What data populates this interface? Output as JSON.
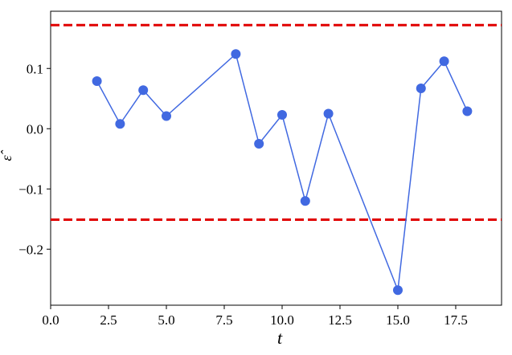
{
  "chart_data": {
    "type": "line",
    "x_label": "t",
    "y_label": "ε̂",
    "x": [
      2,
      3,
      4,
      5,
      8,
      9,
      10,
      11,
      12,
      15,
      16,
      17,
      18
    ],
    "series": [
      {
        "color": "#4169e1",
        "values": [
          0.079,
          0.008,
          0.064,
          0.021,
          0.124,
          -0.025,
          0.023,
          -0.12,
          0.025,
          -0.268,
          0.067,
          0.112,
          0.029
        ]
      }
    ],
    "hlines": [
      {
        "value": 0.172,
        "color": "#e00000"
      },
      {
        "value": -0.151,
        "color": "#e00000"
      }
    ],
    "xlim": [
      0,
      19.48
    ],
    "ylim": [
      -0.293,
      0.195
    ],
    "xticks": [
      {
        "value": 0,
        "label": "0.0"
      },
      {
        "value": 2.5,
        "label": "2.5"
      },
      {
        "value": 5,
        "label": "5.0"
      },
      {
        "value": 7.5,
        "label": "7.5"
      },
      {
        "value": 10,
        "label": "10.0"
      },
      {
        "value": 12.5,
        "label": "12.5"
      },
      {
        "value": 15,
        "label": "15.0"
      },
      {
        "value": 17.5,
        "label": "17.5"
      }
    ],
    "yticks": [
      {
        "value": -0.2,
        "label": "−0.2"
      },
      {
        "value": -0.1,
        "label": "−0.1"
      },
      {
        "value": 0,
        "label": "0.0"
      },
      {
        "value": 0.1,
        "label": "0.1"
      }
    ],
    "grid": false
  }
}
